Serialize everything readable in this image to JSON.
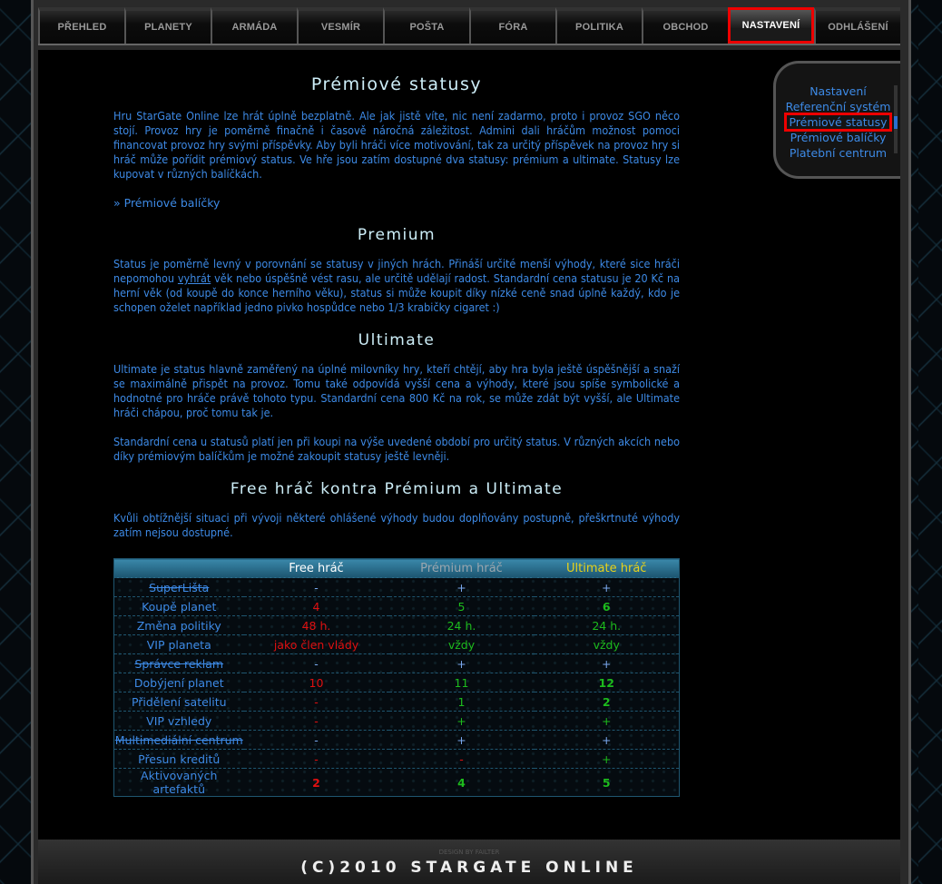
{
  "nav": [
    {
      "label": "PŘEHLED"
    },
    {
      "label": "PLANETY"
    },
    {
      "label": "ARMÁDA"
    },
    {
      "label": "VESMÍR"
    },
    {
      "label": "POŠTA"
    },
    {
      "label": "FÓRA"
    },
    {
      "label": "POLITIKA"
    },
    {
      "label": "OBCHOD"
    },
    {
      "label": "NASTAVENÍ",
      "active": true
    },
    {
      "label": "ODHLÁŠENÍ"
    }
  ],
  "sidebar": {
    "items": [
      {
        "label": "Nastavení"
      },
      {
        "label": "Referenční systém"
      },
      {
        "label": "Prémiové statusy",
        "active": true
      },
      {
        "label": "Prémiové balíčky"
      },
      {
        "label": "Platební centrum"
      }
    ]
  },
  "content": {
    "title": "Prémiové statusy",
    "intro": "Hru StarGate Online lze hrát úplně bezplatně. Ale jak jistě víte, nic není zadarmo, proto i provoz SGO něco stojí. Provoz hry je poměrně finačně i časově náročná záležitost. Admini dali hráčům možnost pomoci financovat provoz hry svými příspěvky. Aby byli hráči více motivování, tak za určitý příspěvek na provoz hry si hráč může pořídit prémiový status. Ve hře jsou zatím dostupné dva statusy: prémium a ultimate. Statusy lze kupovat v různých balíčkách.",
    "packages_link": "» Prémiové balíčky",
    "premium_title": "Premium",
    "premium_text_a": "Status je poměrně levný v porovnání se statusy v jiných hrách. Přináší určité menší výhody, které sice hráči nepomohou ",
    "premium_link": "vyhrát",
    "premium_text_b": " věk nebo úspěšně vést rasu, ale určitě udělají radost. Standardní cena statusu je 20 Kč na herní věk (od koupě do konce herního věku), status si může koupit díky nízké ceně snad úplně každý, kdo je schopen oželet například jedno pivko hospůdce nebo 1/3 krabičky cigaret :)",
    "ultimate_title": "Ultimate",
    "ultimate_text": "Ultimate je status hlavně zaměřený na úplné milovníky hry, kteří chtějí, aby hra byla ještě úspěšnější a snaží se maximálně přispět na provoz. Tomu také odpovídá vyšší cena a výhody, které jsou spíše symbolické a hodnotné pro hráče právě tohoto typu. Standardní cena 800 Kč na rok, se může zdát být vyšší, ale Ultimate hráči chápou, proč tomu tak je.",
    "price_note": "Standardní cena u statusů platí jen při koupi na výše uvedené období pro určitý status. V různých akcích nebo díky prémiovým balíčkům je možné zakoupit statusy ještě levněji.",
    "compare_title": "Free hráč kontra Prémium a Ultimate",
    "compare_text": "Kvůli obtížnější situaci při vývoji některé ohlášené výhody budou doplňovány postupně, přeškrtnuté výhody zatím nejsou dostupné."
  },
  "table": {
    "headers": [
      {
        "label": "",
        "color": ""
      },
      {
        "label": "Free hráč",
        "color": "#ffffff"
      },
      {
        "label": "Prémium hráč",
        "color": "#9aa6ae"
      },
      {
        "label": "Ultimate hráč",
        "color": "#e8d21a"
      }
    ],
    "rows": [
      {
        "feature": "SuperLišta",
        "struck": true,
        "cells": [
          {
            "v": "-",
            "c": "blue"
          },
          {
            "v": "+",
            "c": "blue"
          },
          {
            "v": "+",
            "c": "blue"
          }
        ]
      },
      {
        "feature": "Koupě planet",
        "cells": [
          {
            "v": "4",
            "c": "red"
          },
          {
            "v": "5",
            "c": "green"
          },
          {
            "v": "6",
            "c": "green",
            "bold": true
          }
        ]
      },
      {
        "feature": "Změna politiky",
        "cells": [
          {
            "v": "48 h.",
            "c": "red"
          },
          {
            "v": "24 h.",
            "c": "green"
          },
          {
            "v": "24 h.",
            "c": "green"
          }
        ]
      },
      {
        "feature": "VIP planeta",
        "cells": [
          {
            "v": "jako člen vlády",
            "c": "red"
          },
          {
            "v": "vždy",
            "c": "green"
          },
          {
            "v": "vždy",
            "c": "green"
          }
        ]
      },
      {
        "feature": "Správce reklam",
        "struck": true,
        "cells": [
          {
            "v": "-",
            "c": "blue"
          },
          {
            "v": "+",
            "c": "blue"
          },
          {
            "v": "+",
            "c": "blue"
          }
        ]
      },
      {
        "feature": "Dobýjení planet",
        "cells": [
          {
            "v": "10",
            "c": "red"
          },
          {
            "v": "11",
            "c": "green"
          },
          {
            "v": "12",
            "c": "green",
            "bold": true
          }
        ]
      },
      {
        "feature": "Přidělení satelitu",
        "cells": [
          {
            "v": "-",
            "c": "red"
          },
          {
            "v": "1",
            "c": "green"
          },
          {
            "v": "2",
            "c": "green",
            "bold": true
          }
        ]
      },
      {
        "feature": "VIP vzhledy",
        "cells": [
          {
            "v": "-",
            "c": "red"
          },
          {
            "v": "+",
            "c": "green"
          },
          {
            "v": "+",
            "c": "green"
          }
        ]
      },
      {
        "feature": "Multimediální centrum",
        "struck": true,
        "cells": [
          {
            "v": "-",
            "c": "blue"
          },
          {
            "v": "+",
            "c": "blue"
          },
          {
            "v": "+",
            "c": "blue"
          }
        ]
      },
      {
        "feature": "Přesun kreditů",
        "cells": [
          {
            "v": "-",
            "c": "red"
          },
          {
            "v": "-",
            "c": "red"
          },
          {
            "v": "+",
            "c": "green"
          }
        ]
      },
      {
        "feature": "Aktivovaných artefaktů",
        "cells": [
          {
            "v": "2",
            "c": "red",
            "bold": true
          },
          {
            "v": "4",
            "c": "green",
            "bold": true
          },
          {
            "v": "5",
            "c": "green",
            "bold": true
          }
        ]
      }
    ]
  },
  "footer": {
    "design": "DESIGN BY FAILTER",
    "copyright": "(C)2010 STARGATE ONLINE"
  },
  "colors": {
    "text": "#3d8ae6",
    "heading": "#cdeef8",
    "red": "#e01010",
    "green": "#1dbb1d",
    "active_border": "#ee0000"
  }
}
